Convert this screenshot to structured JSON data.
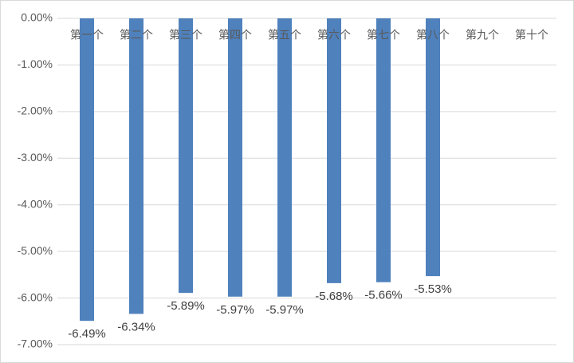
{
  "chart_data": {
    "type": "bar",
    "categories": [
      "第一个",
      "第二个",
      "第三个",
      "第四个",
      "第五个",
      "第六个",
      "第七个",
      "第八个",
      "第九个",
      "第十个"
    ],
    "values": [
      -6.49,
      -6.34,
      -5.89,
      -5.97,
      -5.97,
      -5.68,
      -5.66,
      -5.53,
      null,
      null
    ],
    "value_labels": [
      "-6.49%",
      "-6.34%",
      "-5.89%",
      "-5.97%",
      "-5.97%",
      "-5.68%",
      "-5.66%",
      "-5.53%",
      null,
      null
    ],
    "color": "#4f81bd",
    "ylim": [
      -7,
      0
    ],
    "yticks": [
      {
        "value": 0,
        "label": "0.00%"
      },
      {
        "value": -1,
        "label": "-1.00%"
      },
      {
        "value": -2,
        "label": "-2.00%"
      },
      {
        "value": -3,
        "label": "-3.00%"
      },
      {
        "value": -4,
        "label": "-4.00%"
      },
      {
        "value": -5,
        "label": "-5.00%"
      },
      {
        "value": -6,
        "label": "-6.00%"
      },
      {
        "value": -7,
        "label": "-7.00%"
      }
    ],
    "grid": true
  }
}
